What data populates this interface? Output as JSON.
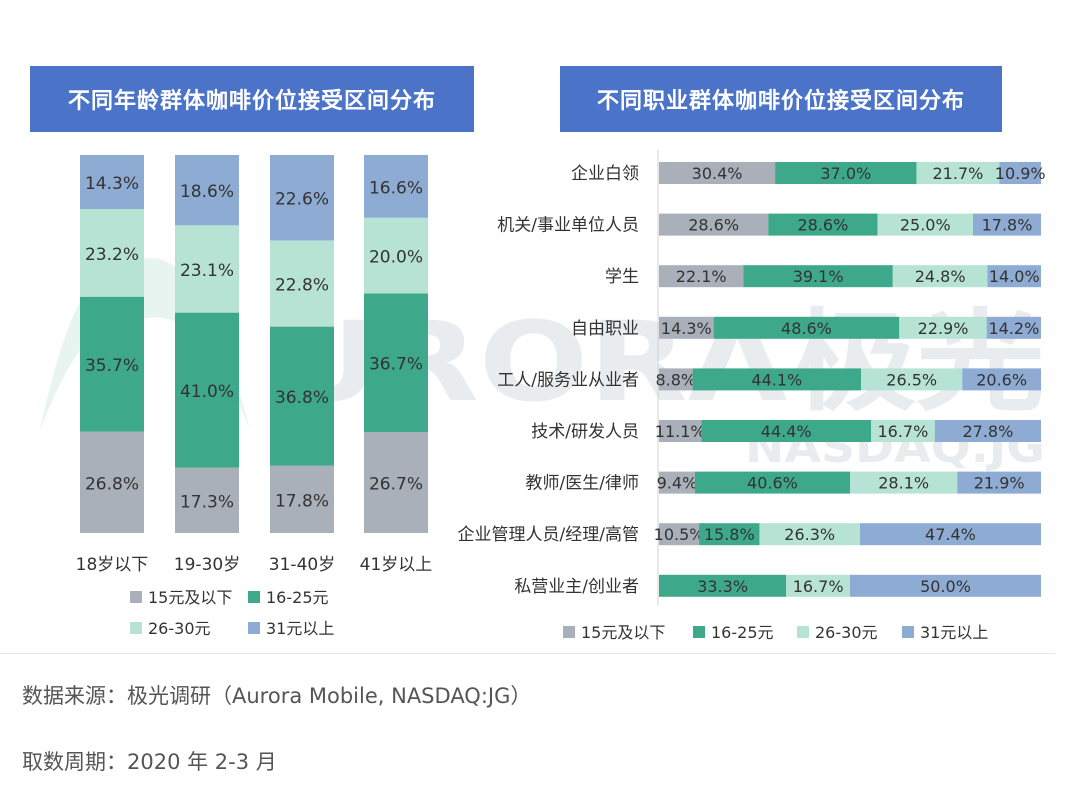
{
  "chart_data": [
    {
      "type": "bar",
      "stacked": true,
      "orientation": "vertical",
      "title": "不同年龄群体咖啡价位接受区间分布",
      "categories": [
        "18岁以下",
        "19-30岁",
        "31-40岁",
        "41岁以上"
      ],
      "series": [
        {
          "name": "15元及以下",
          "values": [
            26.8,
            17.3,
            17.8,
            26.7
          ],
          "labels": [
            "26.8%",
            "17.3%",
            "17.8%",
            "26.7%"
          ]
        },
        {
          "name": "16-25元",
          "values": [
            35.7,
            41.0,
            36.8,
            36.7
          ],
          "labels": [
            "35.7%",
            "41.0%",
            "36.8%",
            "36.7%"
          ]
        },
        {
          "name": "26-30元",
          "values": [
            23.2,
            23.1,
            22.8,
            20.0
          ],
          "labels": [
            "23.2%",
            "23.1%",
            "22.8%",
            "20.0%"
          ]
        },
        {
          "name": "31元以上",
          "values": [
            14.3,
            18.6,
            22.6,
            16.6
          ],
          "labels": [
            "14.3%",
            "18.6%",
            "22.6%",
            "16.6%"
          ]
        }
      ],
      "ylim": [
        0,
        100
      ],
      "legend_position": "bottom"
    },
    {
      "type": "bar",
      "stacked": true,
      "orientation": "horizontal",
      "title": "不同职业群体咖啡价位接受区间分布",
      "categories": [
        "企业白领",
        "机关/事业单位人员",
        "学生",
        "自由职业",
        "工人/服务业从业者",
        "技术/研发人员",
        "教师/医生/律师",
        "企业管理人员/经理/高管",
        "私营业主/创业者"
      ],
      "series": [
        {
          "name": "15元及以下",
          "values": [
            30.4,
            28.6,
            22.1,
            14.3,
            8.8,
            11.1,
            9.4,
            10.5,
            0
          ],
          "labels": [
            "30.4%",
            "28.6%",
            "22.1%",
            "14.3%",
            "8.8%",
            "11.1%",
            "9.4%",
            "10.5%",
            ""
          ]
        },
        {
          "name": "16-25元",
          "values": [
            37.0,
            28.6,
            39.1,
            48.6,
            44.1,
            44.4,
            40.6,
            15.8,
            33.3
          ],
          "labels": [
            "37.0%",
            "28.6%",
            "39.1%",
            "48.6%",
            "44.1%",
            "44.4%",
            "40.6%",
            "15.8%",
            "33.3%"
          ]
        },
        {
          "name": "26-30元",
          "values": [
            21.7,
            25.0,
            24.8,
            22.9,
            26.5,
            16.7,
            28.1,
            26.3,
            16.7
          ],
          "labels": [
            "21.7%",
            "25.0%",
            "24.8%",
            "22.9%",
            "26.5%",
            "16.7%",
            "28.1%",
            "26.3%",
            "16.7%"
          ]
        },
        {
          "name": "31元以上",
          "values": [
            10.9,
            17.8,
            14.0,
            14.2,
            20.6,
            27.8,
            21.9,
            47.4,
            50.0
          ],
          "labels": [
            "10.9%",
            "17.8%",
            "14.0%",
            "14.2%",
            "20.6%",
            "27.8%",
            "21.9%",
            "47.4%",
            "50.0%"
          ]
        }
      ],
      "xlim": [
        0,
        100
      ],
      "legend_position": "bottom"
    }
  ],
  "colors": [
    "#a9b0b9",
    "#3ea88a",
    "#b6e3d4",
    "#8eabd3"
  ],
  "watermark": {
    "text": "URORA极光",
    "sub": "NASDAQ.JG"
  },
  "footer": {
    "source": "数据来源：极光调研（Aurora Mobile, NASDAQ:JG）",
    "period": "取数周期：2020 年 2-3 月"
  }
}
